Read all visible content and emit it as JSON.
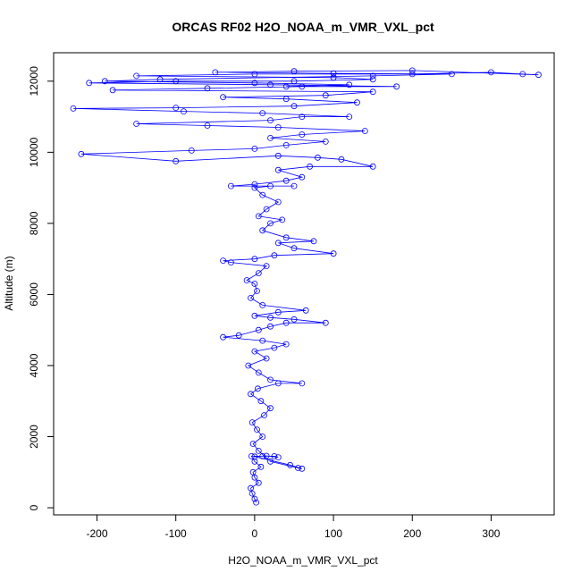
{
  "chart_data": {
    "type": "scatter",
    "title": "ORCAS RF02 H2O_NOAA_m_VMR_VXL_pct",
    "xlabel": "H2O_NOAA_m_VMR_VXL_pct",
    "ylabel": "Altitude (m)",
    "xlim": [
      -255,
      380
    ],
    "ylim": [
      -200,
      12800
    ],
    "xticks": [
      -200,
      -100,
      0,
      100,
      200,
      300
    ],
    "yticks": [
      0,
      2000,
      4000,
      6000,
      8000,
      10000,
      12000
    ],
    "grid": false,
    "legend": "none",
    "series_color": "#0000ff",
    "marker": "open-circle",
    "connected": true,
    "points": [
      [
        2,
        150
      ],
      [
        0,
        250
      ],
      [
        -3,
        400
      ],
      [
        -5,
        550
      ],
      [
        5,
        700
      ],
      [
        0,
        850
      ],
      [
        -2,
        1000
      ],
      [
        8,
        1150
      ],
      [
        0,
        1300
      ],
      [
        -4,
        1450
      ],
      [
        10,
        1450
      ],
      [
        25,
        1450
      ],
      [
        30,
        1420
      ],
      [
        15,
        1460
      ],
      [
        0,
        1440
      ],
      [
        45,
        1200
      ],
      [
        60,
        1100
      ],
      [
        55,
        1120
      ],
      [
        20,
        1300
      ],
      [
        5,
        1600
      ],
      [
        -2,
        1800
      ],
      [
        10,
        2000
      ],
      [
        3,
        2200
      ],
      [
        -3,
        2400
      ],
      [
        12,
        2600
      ],
      [
        20,
        2800
      ],
      [
        8,
        3000
      ],
      [
        -5,
        3200
      ],
      [
        4,
        3350
      ],
      [
        30,
        3500
      ],
      [
        60,
        3500
      ],
      [
        20,
        3600
      ],
      [
        5,
        3800
      ],
      [
        -8,
        4000
      ],
      [
        15,
        4200
      ],
      [
        0,
        4400
      ],
      [
        25,
        4500
      ],
      [
        40,
        4600
      ],
      [
        10,
        4700
      ],
      [
        -40,
        4800
      ],
      [
        -20,
        4850
      ],
      [
        5,
        5000
      ],
      [
        20,
        5100
      ],
      [
        40,
        5200
      ],
      [
        90,
        5200
      ],
      [
        50,
        5300
      ],
      [
        20,
        5350
      ],
      [
        0,
        5400
      ],
      [
        30,
        5500
      ],
      [
        65,
        5550
      ],
      [
        10,
        5700
      ],
      [
        -5,
        5900
      ],
      [
        3,
        6100
      ],
      [
        0,
        6300
      ],
      [
        -10,
        6400
      ],
      [
        5,
        6600
      ],
      [
        15,
        6800
      ],
      [
        -30,
        6900
      ],
      [
        -40,
        6950
      ],
      [
        0,
        7000
      ],
      [
        25,
        7100
      ],
      [
        100,
        7150
      ],
      [
        50,
        7300
      ],
      [
        30,
        7450
      ],
      [
        75,
        7500
      ],
      [
        40,
        7600
      ],
      [
        10,
        7800
      ],
      [
        20,
        8000
      ],
      [
        35,
        8100
      ],
      [
        5,
        8200
      ],
      [
        15,
        8400
      ],
      [
        30,
        8600
      ],
      [
        10,
        8800
      ],
      [
        0,
        9000
      ],
      [
        20,
        9050
      ],
      [
        50,
        9050
      ],
      [
        -30,
        9050
      ],
      [
        0,
        9100
      ],
      [
        40,
        9200
      ],
      [
        60,
        9300
      ],
      [
        30,
        9500
      ],
      [
        70,
        9600
      ],
      [
        150,
        9600
      ],
      [
        110,
        9800
      ],
      [
        80,
        9850
      ],
      [
        30,
        9900
      ],
      [
        -100,
        9750
      ],
      [
        -220,
        9950
      ],
      [
        -80,
        10050
      ],
      [
        0,
        10100
      ],
      [
        40,
        10200
      ],
      [
        90,
        10300
      ],
      [
        20,
        10400
      ],
      [
        60,
        10500
      ],
      [
        140,
        10600
      ],
      [
        30,
        10700
      ],
      [
        -60,
        10750
      ],
      [
        -150,
        10800
      ],
      [
        20,
        10900
      ],
      [
        60,
        11000
      ],
      [
        120,
        11000
      ],
      [
        10,
        11100
      ],
      [
        -90,
        11150
      ],
      [
        -230,
        11230
      ],
      [
        -100,
        11250
      ],
      [
        50,
        11300
      ],
      [
        130,
        11400
      ],
      [
        40,
        11500
      ],
      [
        -40,
        11550
      ],
      [
        90,
        11600
      ],
      [
        150,
        11700
      ],
      [
        -180,
        11750
      ],
      [
        -60,
        11800
      ],
      [
        60,
        11850
      ],
      [
        180,
        11850
      ],
      [
        20,
        11900
      ],
      [
        -210,
        11950
      ],
      [
        -100,
        12000
      ],
      [
        50,
        12000
      ],
      [
        150,
        12050
      ],
      [
        100,
        12100
      ],
      [
        -150,
        12150
      ],
      [
        0,
        12200
      ],
      [
        200,
        12200
      ],
      [
        300,
        12250
      ],
      [
        340,
        12200
      ],
      [
        360,
        12180
      ],
      [
        200,
        12300
      ],
      [
        50,
        12280
      ],
      [
        -50,
        12250
      ],
      [
        100,
        12220
      ],
      [
        250,
        12200
      ],
      [
        150,
        12150
      ],
      [
        -120,
        12050
      ],
      [
        -190,
        12000
      ],
      [
        0,
        11950
      ],
      [
        120,
        11900
      ],
      [
        40,
        11850
      ]
    ]
  }
}
